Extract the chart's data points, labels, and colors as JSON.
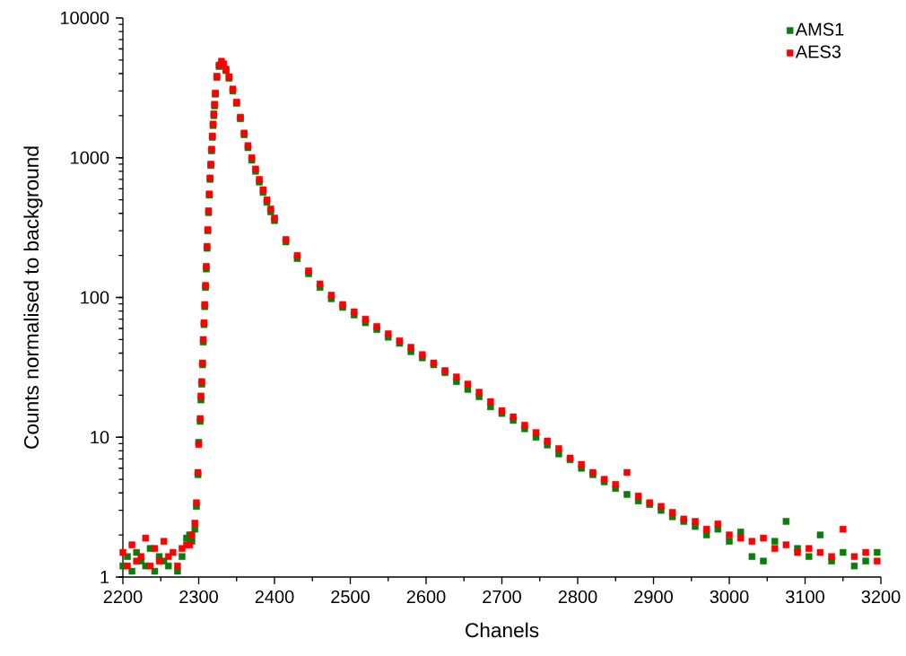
{
  "chart_data": {
    "type": "scatter",
    "xlabel": "Chanels",
    "ylabel": "Counts normalised to background",
    "x": [
      2200,
      2206,
      2212,
      2218,
      2224,
      2230,
      2236,
      2242,
      2248,
      2254,
      2260,
      2266,
      2272,
      2278,
      2284,
      2288,
      2291,
      2295,
      2297,
      2299,
      2300,
      2302,
      2303,
      2304,
      2305,
      2306,
      2307,
      2308,
      2309,
      2310,
      2311,
      2312,
      2313,
      2314,
      2315,
      2316,
      2317,
      2318,
      2319,
      2320,
      2321,
      2322,
      2324,
      2327,
      2330,
      2333,
      2336,
      2340,
      2345,
      2350,
      2355,
      2360,
      2365,
      2370,
      2375,
      2380,
      2385,
      2390,
      2395,
      2400,
      2415,
      2430,
      2445,
      2460,
      2475,
      2490,
      2505,
      2520,
      2535,
      2550,
      2565,
      2580,
      2595,
      2610,
      2625,
      2640,
      2655,
      2670,
      2685,
      2700,
      2715,
      2730,
      2745,
      2760,
      2775,
      2790,
      2805,
      2820,
      2835,
      2850,
      2865,
      2880,
      2895,
      2910,
      2925,
      2940,
      2955,
      2970,
      2985,
      3000,
      3015,
      3030,
      3045,
      3060,
      3075,
      3090,
      3105,
      3120,
      3135,
      3150,
      3165,
      3180,
      3195
    ],
    "series": [
      {
        "name": "AMS1",
        "color": "#0a7d0a",
        "values": [
          1.2,
          1.4,
          1.1,
          1.5,
          1.3,
          1.2,
          1.6,
          1.1,
          1.4,
          1.3,
          1.2,
          null,
          1.1,
          1.4,
          1.9,
          2.0,
          1.8,
          2.2,
          3.2,
          5.4,
          9.2,
          13,
          18.5,
          24,
          33,
          48,
          64,
          86,
          118,
          160,
          225,
          300,
          405,
          540,
          700,
          880,
          1120,
          1400,
          1700,
          2000,
          2350,
          2850,
          3750,
          4500,
          null,
          null,
          4200,
          3700,
          3000,
          2450,
          1900,
          1460,
          1180,
          960,
          800,
          670,
          565,
          480,
          410,
          355,
          250,
          190,
          148,
          118,
          98,
          85,
          75,
          66,
          59,
          52,
          47,
          41,
          37,
          33,
          29,
          25,
          22,
          19.5,
          16.5,
          14.8,
          13.2,
          11.5,
          10,
          8.8,
          7.6,
          6.9,
          6,
          5.4,
          4.8,
          4.3,
          3.9,
          3.5,
          3.3,
          3,
          2.7,
          2.5,
          2.3,
          2,
          2.2,
          1.8,
          2.1,
          1.4,
          1.3,
          1.8,
          2.5,
          1.6,
          1.4,
          2,
          1.3,
          1.5,
          1.2,
          1.3,
          1.5
        ]
      },
      {
        "name": "AES3",
        "color": "#ff0000",
        "values": [
          1.5,
          1.2,
          1.7,
          1.3,
          1.4,
          1.9,
          1.2,
          1.6,
          1.3,
          1.8,
          1.4,
          1.5,
          1.2,
          1.6,
          1.7,
          1.7,
          2.0,
          2.43,
          3.4,
          5.6,
          8.9,
          13.6,
          19.7,
          25,
          34,
          50,
          66,
          89,
          122,
          167,
          232,
          306,
          417,
          550,
          716,
          900,
          1150,
          1430,
          1740,
          2060,
          2410,
          2900,
          3830,
          4600,
          4900,
          4700,
          4300,
          3800,
          3100,
          2500,
          1950,
          1500,
          1220,
          1000,
          830,
          700,
          590,
          500,
          430,
          370,
          260,
          200,
          155,
          125,
          104,
          89,
          79,
          70,
          62,
          55,
          49,
          44,
          39,
          34,
          30,
          27,
          24,
          21,
          18,
          15.5,
          14,
          12.2,
          10.8,
          9.4,
          8.3,
          7.1,
          6.4,
          5.6,
          5,
          4.6,
          5.6,
          3.8,
          3.4,
          3.2,
          2.9,
          2.6,
          2.5,
          2.2,
          2.4,
          2,
          1.9,
          1.8,
          1.9,
          1.6,
          1.7,
          1.5,
          1.6,
          1.5,
          1.4,
          2.2,
          1.4,
          1.5,
          1.3
        ]
      }
    ],
    "xlim": [
      2200,
      3200
    ],
    "ylim": [
      1,
      10000
    ],
    "xticks": [
      2200,
      2300,
      2400,
      2500,
      2600,
      2700,
      2800,
      2900,
      3000,
      3100,
      3200
    ],
    "yticks": [
      1,
      10,
      100,
      1000,
      10000
    ],
    "log": "y",
    "marker": "square",
    "legend": "top right"
  }
}
